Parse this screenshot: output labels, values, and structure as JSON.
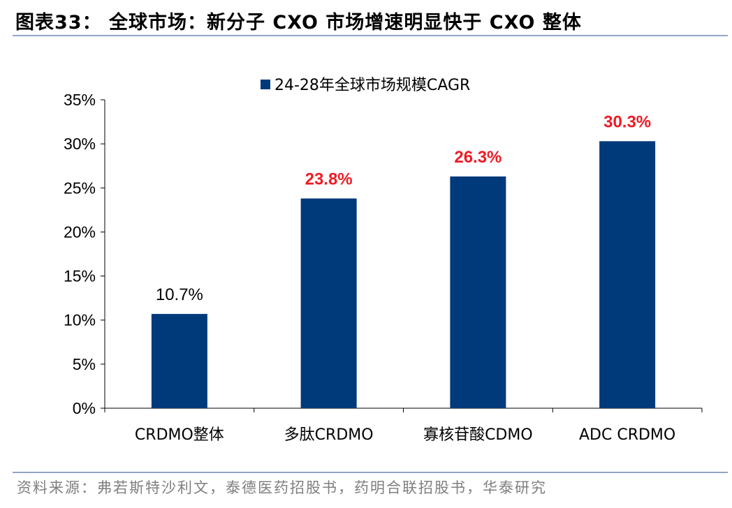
{
  "header": {
    "title": "图表33： 全球市场：新分子 CXO 市场增速明显快于 CXO 整体"
  },
  "footer": {
    "source": "资料来源：弗若斯特沙利文，泰德医药招股书，药明合联招股书，华泰研究"
  },
  "colors": {
    "bar": "#003a7a",
    "highlight_label": "#ee1c25",
    "normal_label": "#000000",
    "axis": "#000000",
    "rule": "#8fa6c5"
  },
  "chart_data": {
    "type": "bar",
    "categories": [
      "CRDMO整体",
      "多肽CRDMO",
      "寡核苷酸CDMO",
      "ADC CRDMO"
    ],
    "series": [
      {
        "name": "24-28年全球市场规模CAGR",
        "values": [
          10.7,
          23.8,
          26.3,
          30.3
        ]
      }
    ],
    "data_labels": [
      "10.7%",
      "23.8%",
      "26.3%",
      "30.3%"
    ],
    "highlighted": [
      false,
      true,
      true,
      true
    ],
    "yticks": [
      "0%",
      "5%",
      "10%",
      "15%",
      "20%",
      "25%",
      "30%",
      "35%"
    ],
    "ylim": [
      0,
      35
    ],
    "ystep": 5,
    "legend_position": "top-center",
    "grid": false
  }
}
